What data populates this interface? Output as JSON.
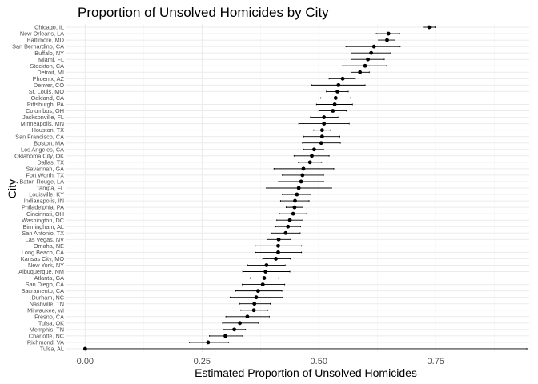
{
  "chart_data": {
    "type": "scatter",
    "title": "Proportion of Unsolved Homicides by City",
    "xlabel": "Estimated Proportion of Unsolved Homicides",
    "ylabel": "City",
    "xlim": [
      -0.04,
      0.95
    ],
    "x_ticks": [
      0.0,
      0.25,
      0.5,
      0.75
    ],
    "x_tick_labels": [
      "0.00",
      "0.25",
      "0.50",
      "0.75"
    ],
    "grid": true,
    "legend": "none",
    "point_color": "#000000",
    "cities": [
      "Chicago, IL",
      "New Orleans, LA",
      "Baltimore, MD",
      "San Bernardino, CA",
      "Buffalo, NY",
      "Miami, FL",
      "Stockton, CA",
      "Detroit, MI",
      "Phoenix, AZ",
      "Denver, CO",
      "St. Louis, MO",
      "Oakland, CA",
      "Pittsburgh, PA",
      "Columbus, OH",
      "Jacksonville, FL",
      "Minneapolis, MN",
      "Houston, TX",
      "San Francisco, CA",
      "Boston, MA",
      "Los Angeles, CA",
      "Oklahoma City, OK",
      "Dallas, TX",
      "Savannah, GA",
      "Fort Worth, TX",
      "Baton Rouge, LA",
      "Tampa, FL",
      "Louisville, KY",
      "Indianapolis, IN",
      "Philadelphia, PA",
      "Cincinnati, OH",
      "Washington, DC",
      "Birmingham, AL",
      "San Antonio, TX",
      "Las Vegas, NV",
      "Omaha, NE",
      "Long Beach, CA",
      "Kansas City, MO",
      "New York, NY",
      "Albuquerque, NM",
      "Atlanta, GA",
      "San Diego, CA",
      "Sacramento, CA",
      "Durham, NC",
      "Nashville, TN",
      "Milwaukee, wI",
      "Fresno, CA",
      "Tulsa, OK",
      "Memphis, TN",
      "Charlotte, NC",
      "Richmond, VA",
      "Tulsa, AL"
    ],
    "estimate": [
      0.736,
      0.649,
      0.646,
      0.618,
      0.612,
      0.605,
      0.599,
      0.588,
      0.551,
      0.542,
      0.54,
      0.536,
      0.534,
      0.53,
      0.511,
      0.511,
      0.507,
      0.507,
      0.505,
      0.49,
      0.485,
      0.481,
      0.467,
      0.465,
      0.462,
      0.457,
      0.453,
      0.449,
      0.448,
      0.445,
      0.438,
      0.434,
      0.429,
      0.414,
      0.413,
      0.413,
      0.408,
      0.388,
      0.386,
      0.383,
      0.38,
      0.37,
      0.366,
      0.362,
      0.361,
      0.347,
      0.331,
      0.319,
      0.3,
      0.263,
      0.0
    ],
    "conf_low": [
      0.724,
      0.623,
      0.628,
      0.558,
      0.569,
      0.569,
      0.551,
      0.569,
      0.522,
      0.485,
      0.516,
      0.504,
      0.495,
      0.5,
      0.482,
      0.457,
      0.489,
      0.468,
      0.465,
      0.468,
      0.447,
      0.456,
      0.404,
      0.422,
      0.414,
      0.388,
      0.422,
      0.418,
      0.43,
      0.416,
      0.41,
      0.408,
      0.398,
      0.389,
      0.364,
      0.364,
      0.38,
      0.348,
      0.337,
      0.353,
      0.336,
      0.322,
      0.31,
      0.331,
      0.333,
      0.301,
      0.294,
      0.297,
      0.266,
      0.223,
      0.0
    ],
    "conf_high": [
      0.749,
      0.673,
      0.663,
      0.674,
      0.654,
      0.64,
      0.645,
      0.608,
      0.578,
      0.599,
      0.563,
      0.568,
      0.572,
      0.559,
      0.541,
      0.565,
      0.525,
      0.545,
      0.546,
      0.51,
      0.522,
      0.506,
      0.532,
      0.51,
      0.51,
      0.527,
      0.483,
      0.479,
      0.466,
      0.474,
      0.466,
      0.461,
      0.46,
      0.44,
      0.463,
      0.463,
      0.439,
      0.428,
      0.438,
      0.414,
      0.427,
      0.421,
      0.423,
      0.396,
      0.391,
      0.394,
      0.371,
      0.343,
      0.337,
      0.307,
      0.945
    ]
  }
}
